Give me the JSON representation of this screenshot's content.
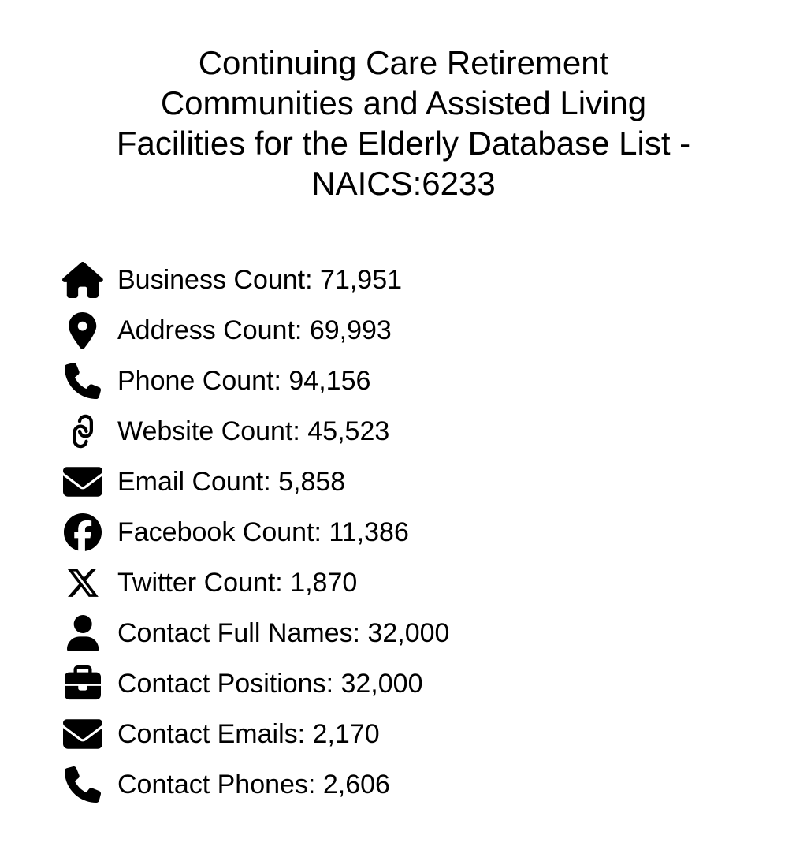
{
  "page": {
    "background": "#ffffff",
    "text_color": "#000000",
    "icon_color": "#000000"
  },
  "title": {
    "lines": [
      "Continuing Care Retirement",
      "Communities and Assisted Living",
      "Facilities for the Elderly Database List -",
      "NAICS:6233"
    ]
  },
  "stats": {
    "items": [
      {
        "icon": "home-icon",
        "label": "Business Count:",
        "value": "71,951"
      },
      {
        "icon": "location-pin-icon",
        "label": "Address Count:",
        "value": "69,993"
      },
      {
        "icon": "phone-icon",
        "label": "Phone Count:",
        "value": "94,156"
      },
      {
        "icon": "link-icon",
        "label": "Website Count:",
        "value": "45,523"
      },
      {
        "icon": "envelope-icon",
        "label": "Email Count:",
        "value": "5,858"
      },
      {
        "icon": "facebook-icon",
        "label": "Facebook Count:",
        "value": "11,386"
      },
      {
        "icon": "x-twitter-icon",
        "label": "Twitter Count:",
        "value": "1,870"
      },
      {
        "icon": "user-icon",
        "label": "Contact Full Names:",
        "value": "32,000"
      },
      {
        "icon": "briefcase-icon",
        "label": "Contact Positions:",
        "value": "32,000"
      },
      {
        "icon": "envelope-icon",
        "label": "Contact Emails:",
        "value": "2,170"
      },
      {
        "icon": "phone-icon",
        "label": "Contact Phones:",
        "value": "2,606"
      }
    ]
  }
}
